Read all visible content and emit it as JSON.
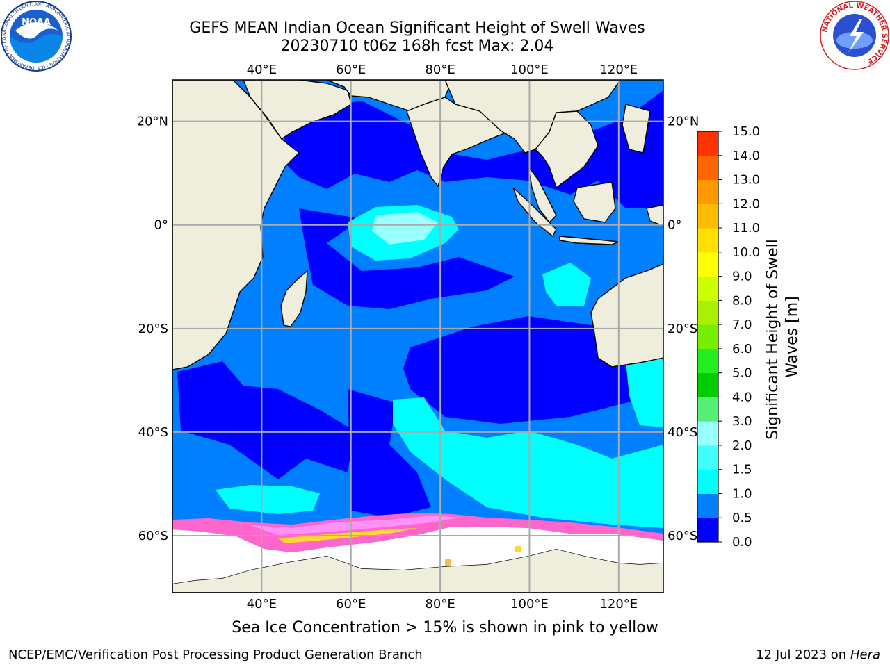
{
  "header": {
    "title_line1": "GEFS MEAN Indian Ocean Significant Height of Swell Waves",
    "title_line2": "20230710 t06z 168h fcst   Max: 2.04"
  },
  "map": {
    "lon_labels": [
      "40°E",
      "60°E",
      "80°E",
      "100°E",
      "120°E"
    ],
    "lat_labels": [
      "20°N",
      "0°",
      "20°S",
      "40°S",
      "60°S"
    ],
    "lon_values": [
      40,
      60,
      80,
      100,
      120
    ],
    "lat_values": [
      20,
      0,
      -20,
      -40,
      -60
    ],
    "lon_range": [
      20,
      130
    ],
    "lat_range": [
      -71,
      28
    ],
    "land_color": "#efeedd",
    "ice_colors": [
      "#ff66cc",
      "#ff99ff",
      "#ffb84d",
      "#ffd633"
    ]
  },
  "colorbar": {
    "label_line1": "Significant Height of Swell",
    "label_line2": "Waves [m]",
    "ticks": [
      "0.0",
      "0.5",
      "1.0",
      "1.5",
      "2.0",
      "3.0",
      "4.0",
      "5.0",
      "6.0",
      "7.0",
      "8.0",
      "9.0",
      "10.0",
      "11.0",
      "12.0",
      "13.0",
      "14.0",
      "15.0"
    ],
    "colors": [
      "#0000ff",
      "#0080ff",
      "#00ffff",
      "#40ffff",
      "#99ffff",
      "#55ee77",
      "#00cc00",
      "#22ee22",
      "#77ee00",
      "#aaee00",
      "#ccff00",
      "#ffff00",
      "#ffe000",
      "#ffbb00",
      "#ff9900",
      "#ff6600",
      "#ff3300",
      "#ff0000"
    ]
  },
  "caption": "Sea Ice Concentration > 15% is shown in pink to yellow",
  "footer": {
    "left": "NCEP/EMC/Verification Post Processing Product Generation Branch",
    "right_prefix": "12 Jul 2023 on ",
    "right_host": "Hera"
  },
  "logos": {
    "noaa_text": "NOAA",
    "noaa_ring": "NATIONAL OCEANIC AND ATMOSPHERIC ADMINISTRATION · U.S. DEPARTMENT OF COMMERCE",
    "nws_ring": "NATIONAL WEATHER SERVICE"
  }
}
